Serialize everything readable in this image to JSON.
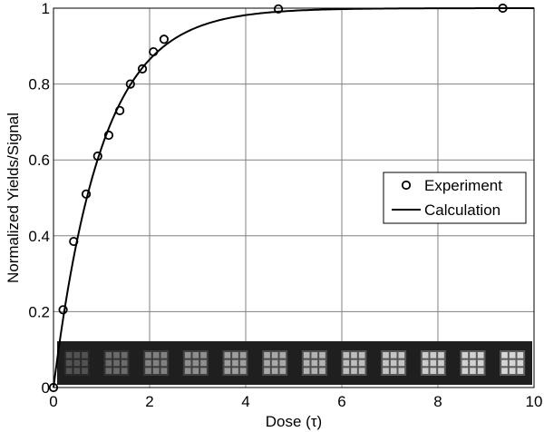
{
  "chart_data": {
    "type": "line",
    "title": "",
    "xlabel": "Dose (τ)",
    "ylabel": "Normalized Yields/Signal",
    "xlim": [
      0,
      10
    ],
    "ylim": [
      0,
      1
    ],
    "x_ticks": [
      "0",
      "2",
      "4",
      "6",
      "8",
      "10"
    ],
    "y_ticks": [
      "0",
      "0.2",
      "0.4",
      "0.6",
      "0.8",
      "1"
    ],
    "grid": true,
    "legend_position": "center-right",
    "series": [
      {
        "name": "Experiment",
        "marker": "circle",
        "x": [
          0.0,
          0.2,
          0.42,
          0.68,
          0.92,
          1.15,
          1.38,
          1.6,
          1.85,
          2.08,
          2.3,
          4.68,
          9.35
        ],
        "y": [
          0.0,
          0.205,
          0.385,
          0.51,
          0.61,
          0.665,
          0.73,
          0.8,
          0.84,
          0.885,
          0.918,
          0.998,
          1.0
        ]
      },
      {
        "name": "Calculation",
        "style": "solid-line",
        "formula": "1 - exp(-x)",
        "x": [
          0,
          0.25,
          0.5,
          0.75,
          1.0,
          1.25,
          1.5,
          1.75,
          2.0,
          2.5,
          3.0,
          3.5,
          4.0,
          5.0,
          6.0,
          8.0,
          10.0
        ],
        "y": [
          0,
          0.221,
          0.393,
          0.528,
          0.632,
          0.713,
          0.777,
          0.826,
          0.865,
          0.918,
          0.95,
          0.97,
          0.982,
          0.993,
          0.998,
          1.0,
          1.0
        ]
      }
    ],
    "inset": {
      "description_kind": "image strip of progressively brighter 3x3 square patterns",
      "panel_count": 12,
      "brightness": [
        0.32,
        0.42,
        0.5,
        0.56,
        0.62,
        0.66,
        0.7,
        0.74,
        0.77,
        0.8,
        0.82,
        0.84
      ]
    },
    "colors": {
      "line": "#000000",
      "grid": "#808080",
      "background": "#ffffff",
      "inset_bg": "#1f1f1f"
    }
  }
}
